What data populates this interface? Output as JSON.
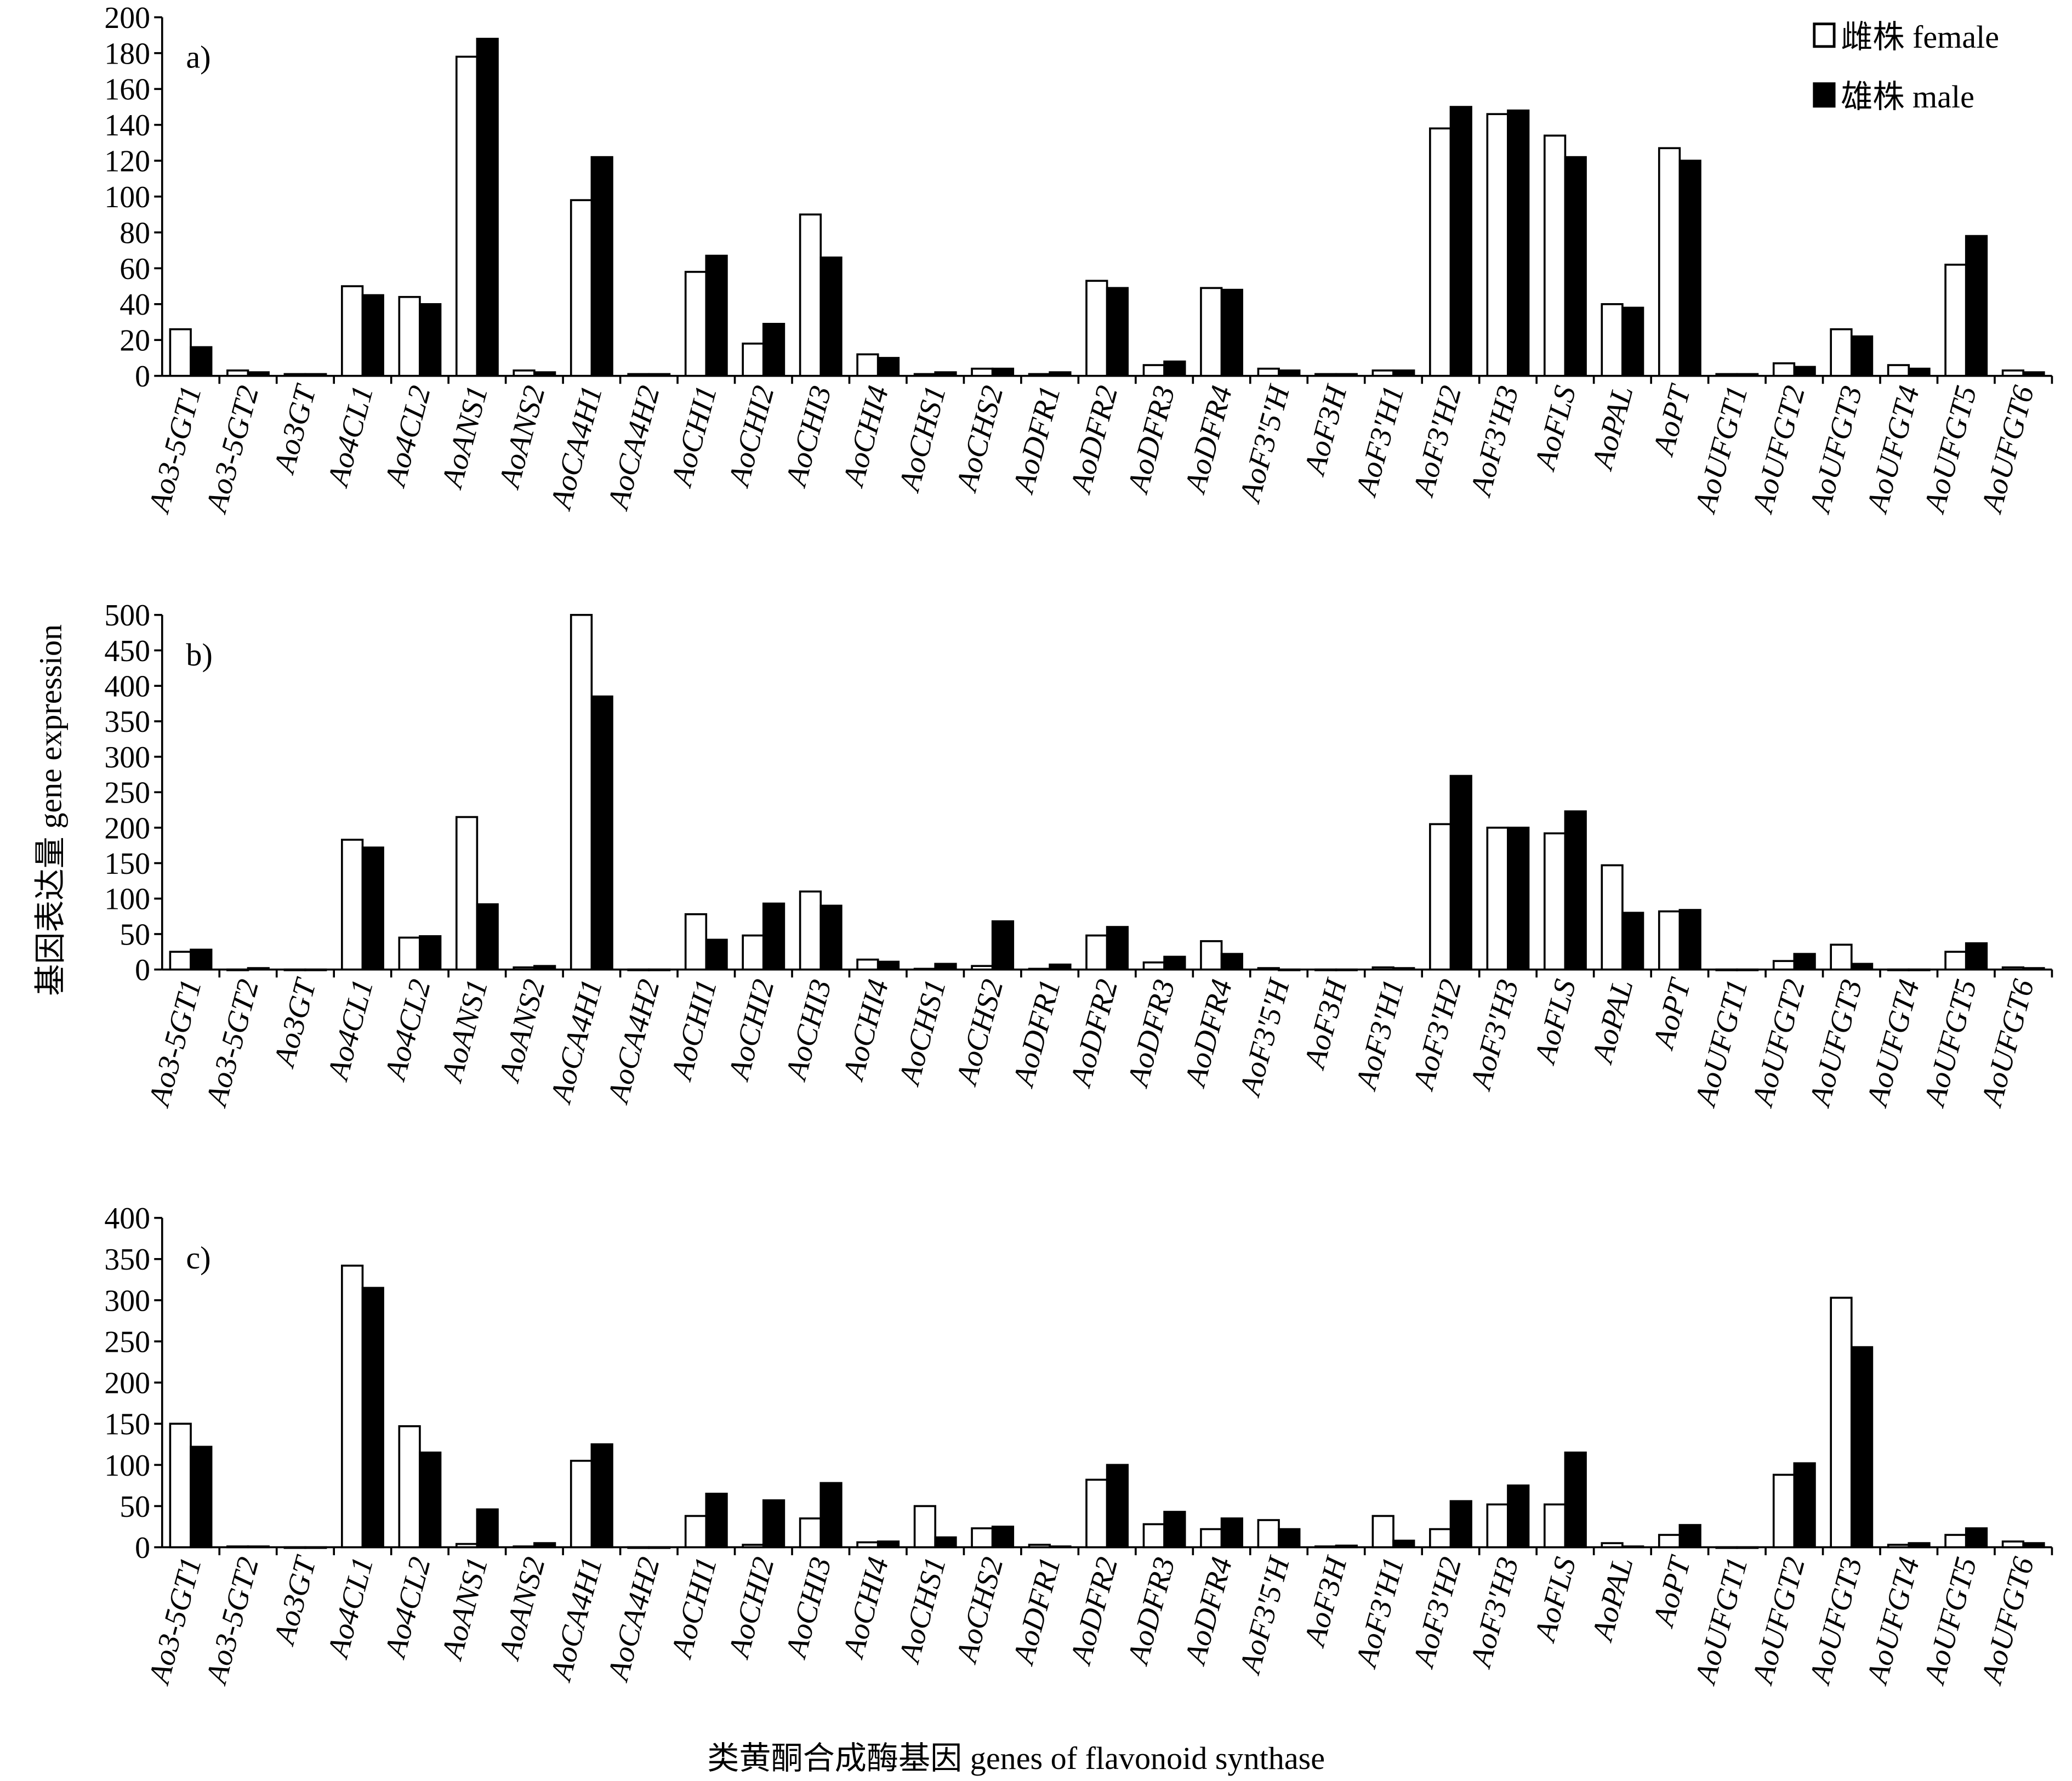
{
  "ylabel": "基因表达量 gene expression",
  "xlabel": "类黄酮合成酶基因 genes of flavonoid synthase",
  "legend": [
    {
      "label": "雌株 female",
      "color": "#ffffff"
    },
    {
      "label": "雄株 male",
      "color": "#000000"
    }
  ],
  "chart_data": [
    {
      "type": "bar",
      "title": "a)",
      "ylim": [
        0,
        200
      ],
      "yticks": [
        0,
        20,
        40,
        60,
        80,
        100,
        120,
        140,
        160,
        180,
        200
      ],
      "categories": [
        "Ao3-5GT1",
        "Ao3-5GT2",
        "Ao3GT",
        "Ao4CL1",
        "Ao4CL2",
        "AoANS1",
        "AoANS2",
        "AoCA4H1",
        "AoCA4H2",
        "AoCHI1",
        "AoCHI2",
        "AoCHI3",
        "AoCHI4",
        "AoCHS1",
        "AoCHS2",
        "AoDFR1",
        "AoDFR2",
        "AoDFR3",
        "AoDFR4",
        "AoF3'5'H",
        "AoF3H",
        "AoF3'H1",
        "AoF3'H2",
        "AoF3'H3",
        "AoFLS",
        "AoPAL",
        "AoPT",
        "AoUFGT1",
        "AoUFGT2",
        "AoUFGT3",
        "AoUFGT4",
        "AoUFGT5",
        "AoUFGT6"
      ],
      "series": [
        {
          "name": "雌株 female",
          "values": [
            26,
            3,
            1,
            50,
            44,
            178,
            3,
            98,
            1,
            58,
            18,
            90,
            12,
            1,
            4,
            1,
            53,
            6,
            49,
            4,
            1,
            3,
            138,
            146,
            134,
            40,
            127,
            1,
            7,
            26,
            6,
            62,
            3
          ]
        },
        {
          "name": "雄株 male",
          "values": [
            16,
            2,
            1,
            45,
            40,
            188,
            2,
            122,
            1,
            67,
            29,
            66,
            10,
            2,
            4,
            2,
            49,
            8,
            48,
            3,
            1,
            3,
            150,
            148,
            122,
            38,
            120,
            1,
            5,
            22,
            4,
            78,
            2
          ]
        }
      ]
    },
    {
      "type": "bar",
      "title": "b)",
      "ylim": [
        0,
        500
      ],
      "yticks": [
        0,
        50,
        100,
        150,
        200,
        250,
        300,
        350,
        400,
        450,
        500
      ],
      "categories": [
        "Ao3-5GT1",
        "Ao3-5GT2",
        "Ao3GT",
        "Ao4CL1",
        "Ao4CL2",
        "AoANS1",
        "AoANS2",
        "AoCA4H1",
        "AoCA4H2",
        "AoCHI1",
        "AoCHI2",
        "AoCHI3",
        "AoCHI4",
        "AoCHS1",
        "AoCHS2",
        "AoDFR1",
        "AoDFR2",
        "AoDFR3",
        "AoDFR4",
        "AoF3'5'H",
        "AoF3H",
        "AoF3'H1",
        "AoF3'H2",
        "AoF3'H3",
        "AoFLS",
        "AoPAL",
        "AoPT",
        "AoUFGT1",
        "AoUFGT2",
        "AoUFGT3",
        "AoUFGT4",
        "AoUFGT5",
        "AoUFGT6"
      ],
      "series": [
        {
          "name": "雌株 female",
          "values": [
            25,
            0,
            0,
            183,
            45,
            215,
            3,
            500,
            0,
            78,
            48,
            110,
            14,
            1,
            5,
            1,
            48,
            10,
            40,
            2,
            0,
            3,
            205,
            200,
            192,
            147,
            82,
            0,
            12,
            35,
            0,
            25,
            3
          ]
        },
        {
          "name": "雄株 male",
          "values": [
            28,
            2,
            0,
            172,
            47,
            92,
            5,
            385,
            0,
            42,
            93,
            90,
            11,
            8,
            68,
            7,
            60,
            18,
            22,
            0,
            0,
            2,
            273,
            200,
            223,
            80,
            84,
            0,
            22,
            8,
            0,
            37,
            2
          ]
        }
      ]
    },
    {
      "type": "bar",
      "title": "c)",
      "ylim": [
        0,
        400
      ],
      "yticks": [
        0,
        50,
        100,
        150,
        200,
        250,
        300,
        350,
        400
      ],
      "categories": [
        "Ao3-5GT1",
        "Ao3-5GT2",
        "Ao3GT",
        "Ao4CL1",
        "Ao4CL2",
        "AoANS1",
        "AoANS2",
        "AoCA4H1",
        "AoCA4H2",
        "AoCHI1",
        "AoCHI2",
        "AoCHI3",
        "AoCHI4",
        "AoCHS1",
        "AoCHS2",
        "AoDFR1",
        "AoDFR2",
        "AoDFR3",
        "AoDFR4",
        "AoF3'5'H",
        "AoF3H",
        "AoF3'H1",
        "AoF3'H2",
        "AoF3'H3",
        "AoFLS",
        "AoPAL",
        "AoPT",
        "AoUFGT1",
        "AoUFGT2",
        "AoUFGT3",
        "AoUFGT4",
        "AoUFGT5",
        "AoUFGT6"
      ],
      "series": [
        {
          "name": "雌株 female",
          "values": [
            150,
            1,
            0,
            342,
            147,
            4,
            1,
            105,
            0,
            38,
            3,
            35,
            6,
            50,
            23,
            3,
            82,
            28,
            22,
            33,
            1,
            38,
            22,
            52,
            52,
            5,
            15,
            0,
            88,
            303,
            3,
            15,
            7
          ]
        },
        {
          "name": "雄株 male",
          "values": [
            122,
            1,
            0,
            315,
            115,
            46,
            5,
            125,
            0,
            65,
            57,
            78,
            7,
            12,
            25,
            1,
            100,
            43,
            35,
            22,
            2,
            8,
            56,
            75,
            115,
            1,
            27,
            0,
            102,
            243,
            5,
            23,
            5
          ]
        }
      ]
    }
  ]
}
